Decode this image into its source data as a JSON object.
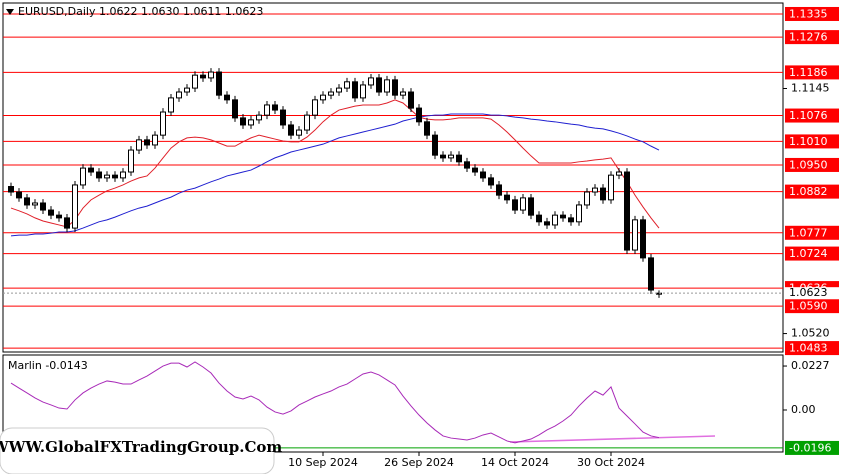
{
  "watermark": "WWW.GlobalFXTradingGroup.Com",
  "chart_data": [
    {
      "type": "candlestick",
      "title": "EURUSD,Daily  1.0622 1.0630 1.0611 1.0623",
      "categories": [
        null,
        null,
        null,
        null,
        null,
        null,
        null,
        null,
        null,
        null,
        null,
        null,
        null,
        null,
        null,
        null,
        null,
        null,
        null,
        null,
        null,
        null,
        null,
        null,
        null,
        null,
        null,
        null,
        null,
        null,
        null,
        null,
        null,
        null,
        null,
        null,
        null,
        null,
        null,
        "10 Sep 2024",
        null,
        null,
        null,
        null,
        null,
        null,
        null,
        null,
        null,
        null,
        null,
        "26 Sep 2024",
        null,
        null,
        null,
        null,
        null,
        null,
        null,
        null,
        null,
        null,
        null,
        "14 Oct 2024",
        null,
        null,
        null,
        null,
        null,
        null,
        null,
        null,
        null,
        null,
        null,
        "30 Oct 2024",
        null,
        null,
        null,
        null,
        null,
        null
      ],
      "open": [
        1.0895,
        1.0881,
        1.0866,
        1.0848,
        1.0853,
        1.0835,
        1.0822,
        1.0815,
        1.0789,
        1.0899,
        1.0942,
        1.0932,
        1.0917,
        1.0924,
        1.0917,
        1.0932,
        1.0988,
        1.1014,
        1.1001,
        1.1026,
        1.1085,
        1.1121,
        1.1136,
        1.1146,
        1.1179,
        1.1172,
        1.1187,
        1.1128,
        1.1116,
        1.107,
        1.1052,
        1.1065,
        1.1077,
        1.1103,
        1.109,
        1.1052,
        1.1026,
        1.1039,
        1.1077,
        1.1116,
        1.1128,
        1.1136,
        1.1146,
        1.1162,
        1.1121,
        1.1154,
        1.1172,
        1.1136,
        1.1167,
        1.1128,
        1.1136,
        1.1095,
        1.106,
        1.1026,
        1.0975,
        1.0968,
        1.0975,
        1.0958,
        1.0942,
        1.0932,
        1.0917,
        1.0899,
        1.0873,
        1.0861,
        1.0835,
        1.0866,
        1.0822,
        1.0805,
        1.0797,
        1.0822,
        1.0815,
        1.0805,
        1.0848,
        1.0881,
        1.0891,
        1.0861,
        1.0924,
        1.0932,
        1.0733,
        1.081,
        1.0713,
        1.0622
      ],
      "high": [
        1.0905,
        1.0891,
        1.0876,
        1.0863,
        1.0863,
        1.0845,
        1.0832,
        1.0825,
        1.0909,
        1.0952,
        1.0952,
        1.0942,
        1.0934,
        1.0934,
        1.0942,
        1.0998,
        1.1024,
        1.1024,
        1.1036,
        1.1095,
        1.1131,
        1.1146,
        1.1156,
        1.1189,
        1.1189,
        1.1197,
        1.1197,
        1.1138,
        1.1126,
        1.108,
        1.1075,
        1.1087,
        1.1113,
        1.1113,
        1.11,
        1.1062,
        1.1049,
        1.1087,
        1.1126,
        1.1138,
        1.1146,
        1.1156,
        1.1172,
        1.1172,
        1.1164,
        1.1182,
        1.1182,
        1.1177,
        1.1177,
        1.1146,
        1.1146,
        1.1105,
        1.107,
        1.1036,
        1.0985,
        1.0985,
        1.0985,
        1.0968,
        1.0952,
        1.0942,
        1.0927,
        1.0909,
        1.0883,
        1.0871,
        1.0876,
        1.0876,
        1.0832,
        1.0815,
        1.0832,
        1.0832,
        1.0825,
        1.0858,
        1.0891,
        1.0901,
        1.0901,
        1.0934,
        1.0942,
        1.0942,
        1.082,
        1.082,
        1.0723,
        1.063
      ],
      "low": [
        1.0871,
        1.0856,
        1.0838,
        1.0838,
        1.0825,
        1.0812,
        1.0805,
        1.0779,
        1.0779,
        1.0889,
        1.0922,
        1.0907,
        1.0907,
        1.0907,
        1.0907,
        1.0922,
        1.0978,
        1.0991,
        1.0991,
        1.1016,
        1.1075,
        1.1111,
        1.1126,
        1.1136,
        1.1162,
        1.1162,
        1.1118,
        1.1106,
        1.106,
        1.1042,
        1.1042,
        1.1055,
        1.1067,
        1.108,
        1.1042,
        1.1016,
        1.1016,
        1.1029,
        1.1067,
        1.1106,
        1.1118,
        1.1126,
        1.1136,
        1.1111,
        1.1111,
        1.1144,
        1.1126,
        1.1126,
        1.1118,
        1.1118,
        1.1085,
        1.105,
        1.1016,
        1.0965,
        1.0958,
        1.0958,
        1.0948,
        1.0932,
        1.0922,
        1.0907,
        1.0889,
        1.0863,
        1.0851,
        1.0825,
        1.0825,
        1.0812,
        1.0795,
        1.0787,
        1.0787,
        1.0805,
        1.0795,
        1.0795,
        1.0838,
        1.0871,
        1.0851,
        1.0851,
        1.0914,
        1.0723,
        1.0723,
        1.0703,
        1.0621,
        1.0611
      ],
      "close": [
        1.0881,
        1.0866,
        1.0848,
        1.0853,
        1.0835,
        1.0822,
        1.0815,
        1.0789,
        1.0899,
        1.0942,
        1.0932,
        1.0917,
        1.0924,
        1.0917,
        1.0932,
        1.0988,
        1.1014,
        1.1001,
        1.1026,
        1.1085,
        1.1121,
        1.1136,
        1.1146,
        1.1179,
        1.1172,
        1.1187,
        1.1128,
        1.1116,
        1.107,
        1.1052,
        1.1065,
        1.1077,
        1.1103,
        1.109,
        1.1052,
        1.1026,
        1.1039,
        1.1077,
        1.1116,
        1.1128,
        1.1136,
        1.1146,
        1.1162,
        1.1121,
        1.1154,
        1.1172,
        1.1136,
        1.1167,
        1.1128,
        1.1136,
        1.1095,
        1.106,
        1.1026,
        1.0975,
        1.0968,
        1.0975,
        1.0958,
        1.0942,
        1.0932,
        1.0917,
        1.0899,
        1.0873,
        1.0861,
        1.0835,
        1.0866,
        1.0822,
        1.0805,
        1.0797,
        1.0822,
        1.0815,
        1.0805,
        1.0848,
        1.0881,
        1.0891,
        1.0861,
        1.0924,
        1.0932,
        1.0733,
        1.081,
        1.0713,
        1.0631,
        1.0623
      ],
      "overlays": [
        {
          "color": "#1f1fd0",
          "values": [
            1.0769,
            1.0771,
            1.0771,
            1.0774,
            1.0774,
            1.0776,
            1.0779,
            1.0779,
            1.0782,
            1.0789,
            1.0797,
            1.0805,
            1.081,
            1.0817,
            1.0825,
            1.0833,
            1.084,
            1.0845,
            1.0853,
            1.0861,
            1.0868,
            1.0878,
            1.0886,
            1.0891,
            1.0899,
            1.0907,
            1.0914,
            1.0922,
            1.0927,
            1.0932,
            1.0937,
            1.0947,
            1.0958,
            1.0968,
            1.0975,
            1.0983,
            1.0988,
            1.0993,
            1.0998,
            1.1003,
            1.1011,
            1.1019,
            1.1024,
            1.1029,
            1.1034,
            1.1039,
            1.1044,
            1.1049,
            1.1054,
            1.1062,
            1.1067,
            1.1072,
            1.1075,
            1.1077,
            1.1077,
            1.108,
            1.108,
            1.108,
            1.108,
            1.108,
            1.1077,
            1.1077,
            1.1075,
            1.1072,
            1.107,
            1.1067,
            1.1065,
            1.1062,
            1.106,
            1.1057,
            1.1054,
            1.1052,
            1.1047,
            1.1044,
            1.1042,
            1.1037,
            1.1031,
            1.1024,
            1.1016,
            1.1009,
            1.0998,
            1.0988
          ]
        },
        {
          "color": "#e0202a",
          "values": [
            1.084,
            1.0833,
            1.0825,
            1.0815,
            1.0807,
            1.0802,
            1.0797,
            1.0792,
            1.081,
            1.084,
            1.0861,
            1.0873,
            1.0884,
            1.0891,
            1.0899,
            1.0909,
            1.0917,
            1.0922,
            1.0942,
            1.0968,
            1.0993,
            1.1009,
            1.1019,
            1.1021,
            1.1019,
            1.1014,
            1.1006,
            1.0998,
            1.0998,
            1.1009,
            1.1019,
            1.1026,
            1.1021,
            1.1016,
            1.1011,
            1.1009,
            1.1009,
            1.1021,
            1.1039,
            1.106,
            1.1077,
            1.109,
            1.1095,
            1.11,
            1.1103,
            1.1103,
            1.1103,
            1.1108,
            1.1116,
            1.1108,
            1.109,
            1.1072,
            1.1067,
            1.1065,
            1.1065,
            1.1067,
            1.107,
            1.107,
            1.107,
            1.107,
            1.1067,
            1.1052,
            1.1034,
            1.1014,
            1.0993,
            1.0973,
            1.0955,
            1.0955,
            1.0955,
            1.0955,
            1.0955,
            1.0958,
            1.096,
            1.0963,
            1.0965,
            1.0968,
            1.0937,
            1.0907,
            1.0873,
            1.0843,
            1.0815,
            1.0789
          ]
        }
      ],
      "ylim": [
        1.0473,
        1.1363
      ],
      "yticks": [
        1.1145,
        {
          "value": 1.052,
          "label": "1.0520"
        }
      ],
      "levels": [
        1.1335,
        1.1276,
        1.1186,
        1.1076,
        {
          "value": 1.101,
          "label": "1.1010"
        },
        {
          "value": 1.095,
          "label": "1.0950"
        },
        1.0882,
        1.0777,
        1.0724,
        1.0636,
        {
          "value": 1.059,
          "label": "1.0590"
        },
        1.0483
      ],
      "level_color": "#ff0000",
      "up_color": "#ffffff",
      "down_color": "#000000"
    },
    {
      "type": "line",
      "title": "Marlin -0.0143",
      "color": "#a82ab8",
      "values": [
        0.0139,
        0.0113,
        0.0088,
        0.0062,
        0.0041,
        0.0026,
        0.001,
        0.0005,
        0.0052,
        0.0088,
        0.0113,
        0.0134,
        0.015,
        0.0144,
        0.0134,
        0.0134,
        0.0155,
        0.0175,
        0.0201,
        0.0227,
        0.0242,
        0.0242,
        0.0222,
        0.0248,
        0.0222,
        0.0191,
        0.0139,
        0.0098,
        0.0067,
        0.0057,
        0.0072,
        0.0052,
        0.0015,
        -0.001,
        -0.0021,
        -0.0005,
        0.0026,
        0.0046,
        0.0067,
        0.0083,
        0.0098,
        0.0119,
        0.0134,
        0.016,
        0.0186,
        0.0196,
        0.0181,
        0.0155,
        0.0129,
        0.0072,
        0.0021,
        -0.0026,
        -0.0067,
        -0.0103,
        -0.0134,
        -0.0145,
        -0.015,
        -0.0155,
        -0.0145,
        -0.0129,
        -0.0119,
        -0.0139,
        -0.016,
        -0.017,
        -0.016,
        -0.015,
        -0.0129,
        -0.0103,
        -0.0083,
        -0.0057,
        -0.0026,
        0.0021,
        0.0062,
        0.0098,
        0.0077,
        0.0119,
        0.001,
        -0.0031,
        -0.0072,
        -0.0114,
        -0.0134,
        -0.0143
      ],
      "ylim": [
        -0.0217,
        0.0284
      ],
      "yticks": [
        0.0227,
        {
          "value": 0,
          "label": "0.00"
        }
      ],
      "levels": [
        -0.0196
      ],
      "level_color": "#00a000"
    }
  ]
}
